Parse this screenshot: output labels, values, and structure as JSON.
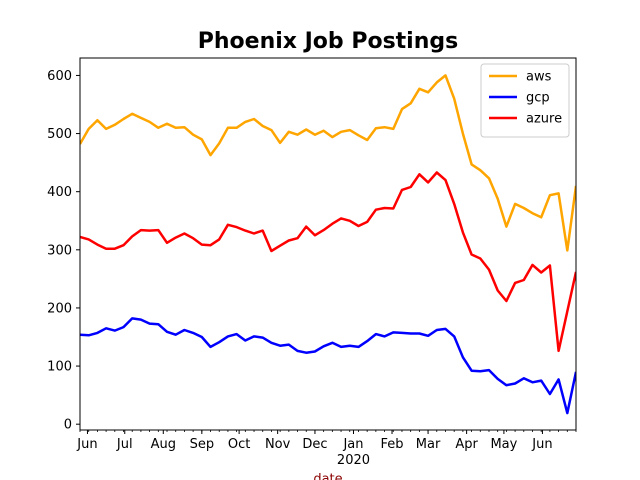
{
  "chart_data": {
    "type": "line",
    "title": "Phoenix Job Postings",
    "xlabel": "date",
    "xlabel_color": "#8b0000",
    "ylabel": "",
    "ylim": [
      -10,
      630
    ],
    "yticks": [
      0,
      100,
      200,
      300,
      400,
      500,
      600
    ],
    "x_dates": [
      "2019-05-26",
      "2019-06-02",
      "2019-06-09",
      "2019-06-16",
      "2019-06-23",
      "2019-06-30",
      "2019-07-07",
      "2019-07-14",
      "2019-07-21",
      "2019-07-28",
      "2019-08-04",
      "2019-08-11",
      "2019-08-18",
      "2019-08-25",
      "2019-09-01",
      "2019-09-08",
      "2019-09-15",
      "2019-09-22",
      "2019-09-29",
      "2019-10-06",
      "2019-10-13",
      "2019-10-20",
      "2019-10-27",
      "2019-11-03",
      "2019-11-10",
      "2019-11-17",
      "2019-11-24",
      "2019-12-01",
      "2019-12-08",
      "2019-12-15",
      "2019-12-22",
      "2019-12-29",
      "2020-01-05",
      "2020-01-12",
      "2020-01-19",
      "2020-01-26",
      "2020-02-02",
      "2020-02-09",
      "2020-02-16",
      "2020-02-23",
      "2020-03-01",
      "2020-03-08",
      "2020-03-15",
      "2020-03-22",
      "2020-03-29",
      "2020-04-05",
      "2020-04-12",
      "2020-04-19",
      "2020-04-26",
      "2020-05-03",
      "2020-05-10",
      "2020-05-17",
      "2020-05-24",
      "2020-05-31",
      "2020-06-07",
      "2020-06-14",
      "2020-06-21",
      "2020-06-28"
    ],
    "x_range": [
      "2019-05-26",
      "2020-06-28"
    ],
    "xticks": [
      {
        "date": "2019-06-01",
        "label": "Jun"
      },
      {
        "date": "2019-07-01",
        "label": "Jul"
      },
      {
        "date": "2019-08-01",
        "label": "Aug"
      },
      {
        "date": "2019-09-01",
        "label": "Sep"
      },
      {
        "date": "2019-10-01",
        "label": "Oct"
      },
      {
        "date": "2019-11-01",
        "label": "Nov"
      },
      {
        "date": "2019-12-01",
        "label": "Dec"
      },
      {
        "date": "2020-01-01",
        "label": "Jan"
      },
      {
        "date": "2020-02-01",
        "label": "Feb"
      },
      {
        "date": "2020-03-01",
        "label": "Mar"
      },
      {
        "date": "2020-04-01",
        "label": "Apr"
      },
      {
        "date": "2020-05-01",
        "label": "May"
      },
      {
        "date": "2020-06-01",
        "label": "Jun"
      }
    ],
    "year_label": {
      "date": "2020-01-01",
      "text": "2020"
    },
    "legend_position": "top-right",
    "grid": false,
    "series": [
      {
        "name": "aws",
        "color": "#ffa500",
        "values": [
          482,
          508,
          523,
          508,
          515,
          525,
          534,
          527,
          520,
          510,
          517,
          510,
          511,
          498,
          490,
          463,
          483,
          510,
          510,
          520,
          525,
          513,
          506,
          484,
          503,
          498,
          507,
          498,
          505,
          494,
          503,
          506,
          497,
          489,
          509,
          511,
          508,
          542,
          552,
          577,
          571,
          588,
          600,
          560,
          500,
          447,
          437,
          423,
          388,
          340,
          379,
          372,
          363,
          356,
          394,
          397,
          299,
          410
        ]
      },
      {
        "name": "gcp",
        "color": "#0000ff",
        "values": [
          154,
          153,
          157,
          165,
          161,
          167,
          182,
          180,
          173,
          172,
          159,
          154,
          162,
          157,
          150,
          133,
          141,
          151,
          155,
          144,
          151,
          149,
          140,
          135,
          137,
          126,
          123,
          125,
          134,
          140,
          133,
          135,
          133,
          143,
          155,
          151,
          158,
          157,
          156,
          156,
          152,
          162,
          164,
          151,
          115,
          92,
          91,
          93,
          78,
          67,
          70,
          79,
          72,
          75,
          52,
          77,
          19,
          90
        ]
      },
      {
        "name": "azure",
        "color": "#ff0000",
        "values": [
          322,
          318,
          309,
          302,
          302,
          308,
          323,
          334,
          333,
          334,
          312,
          321,
          328,
          320,
          309,
          308,
          318,
          343,
          339,
          333,
          328,
          333,
          298,
          307,
          316,
          320,
          340,
          325,
          334,
          345,
          354,
          350,
          341,
          348,
          369,
          372,
          371,
          403,
          408,
          430,
          416,
          433,
          420,
          379,
          330,
          292,
          285,
          266,
          230,
          212,
          243,
          248,
          274,
          261,
          273,
          126,
          194,
          262
        ]
      }
    ]
  }
}
